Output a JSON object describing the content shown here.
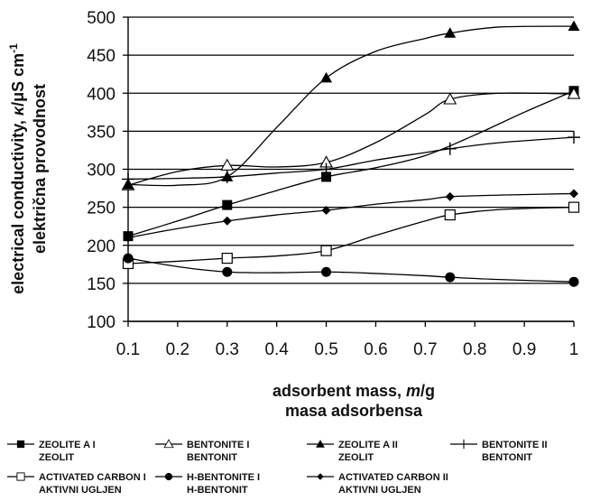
{
  "chart_data": {
    "type": "line",
    "title": "",
    "xlabel": [
      "adsorbent mass, m/g",
      "masa adsorbensa"
    ],
    "xlabel_parts": [
      {
        "pre": "adsorbent mass, ",
        "sym": "m",
        "post": "/g"
      },
      {
        "pre": "masa adsorbensa",
        "sym": "",
        "post": ""
      }
    ],
    "ylabel_parts": [
      {
        "pre": "electrical conductivity, ",
        "sym": "κ",
        "post": "/μS cm",
        "sup": "-1"
      },
      {
        "pre": "električna provodnost",
        "sym": "",
        "post": "",
        "sup": ""
      }
    ],
    "xlim": [
      0.1,
      1
    ],
    "ylim": [
      100,
      500
    ],
    "xticks": [
      "0.1",
      "0.2",
      "0.3",
      "0.4",
      "0.5",
      "0.6",
      "0.7",
      "0.8",
      "0.9",
      "1"
    ],
    "yticks": [
      "100",
      "150",
      "200",
      "250",
      "300",
      "350",
      "400",
      "450",
      "500"
    ],
    "grid": "horizontal",
    "legend_position": "bottom",
    "series": [
      {
        "name": [
          "ZEOLITE A I",
          "ZEOLIT"
        ],
        "marker": "square-filled",
        "x": [
          0.1,
          0.3,
          0.5,
          1.0
        ],
        "y": [
          212,
          253,
          290,
          403
        ],
        "curve": [
          [
            0.1,
            212
          ],
          [
            0.2,
            232
          ],
          [
            0.3,
            253
          ],
          [
            0.4,
            272
          ],
          [
            0.5,
            290
          ],
          [
            0.6,
            302
          ],
          [
            0.7,
            318
          ],
          [
            0.8,
            345
          ],
          [
            0.9,
            375
          ],
          [
            1.0,
            403
          ]
        ]
      },
      {
        "name": [
          "BENTONITE I",
          "BENTONIT"
        ],
        "marker": "triangle-open",
        "x": [
          0.1,
          0.3,
          0.5,
          0.75,
          1.0
        ],
        "y": [
          279,
          305,
          309,
          392,
          399
        ],
        "curve": [
          [
            0.1,
            279
          ],
          [
            0.2,
            297
          ],
          [
            0.3,
            305
          ],
          [
            0.4,
            303
          ],
          [
            0.5,
            309
          ],
          [
            0.6,
            335
          ],
          [
            0.7,
            372
          ],
          [
            0.75,
            392
          ],
          [
            0.85,
            400
          ],
          [
            1.0,
            399
          ]
        ]
      },
      {
        "name": [
          "ZEOLITE A II",
          "ZEOLIT"
        ],
        "marker": "triangle-filled",
        "x": [
          0.1,
          0.3,
          0.5,
          0.75,
          1.0
        ],
        "y": [
          280,
          290,
          420,
          479,
          488
        ],
        "curve": [
          [
            0.1,
            280
          ],
          [
            0.2,
            279
          ],
          [
            0.3,
            290
          ],
          [
            0.4,
            355
          ],
          [
            0.5,
            420
          ],
          [
            0.6,
            455
          ],
          [
            0.7,
            472
          ],
          [
            0.75,
            479
          ],
          [
            0.85,
            487
          ],
          [
            1.0,
            488
          ]
        ]
      },
      {
        "name": [
          "BENTONITE II",
          "BENTONIT"
        ],
        "marker": "plus",
        "x": [
          0.1,
          0.3,
          0.5,
          0.75,
          1.0
        ],
        "y": [
          287,
          290,
          300,
          327,
          342
        ],
        "curve": [
          [
            0.1,
            287
          ],
          [
            0.2,
            288
          ],
          [
            0.3,
            290
          ],
          [
            0.4,
            295
          ],
          [
            0.5,
            300
          ],
          [
            0.6,
            312
          ],
          [
            0.7,
            322
          ],
          [
            0.75,
            327
          ],
          [
            0.85,
            335
          ],
          [
            1.0,
            342
          ]
        ]
      },
      {
        "name": [
          "ACTIVATED CARBON I",
          "AKTIVNI UGLJEN"
        ],
        "marker": "square-open",
        "x": [
          0.1,
          0.3,
          0.5,
          0.75,
          1.0
        ],
        "y": [
          176,
          183,
          193,
          240,
          250
        ],
        "curve": [
          [
            0.1,
            176
          ],
          [
            0.2,
            179
          ],
          [
            0.3,
            183
          ],
          [
            0.4,
            186
          ],
          [
            0.5,
            193
          ],
          [
            0.6,
            213
          ],
          [
            0.7,
            232
          ],
          [
            0.75,
            240
          ],
          [
            0.85,
            247
          ],
          [
            1.0,
            250
          ]
        ]
      },
      {
        "name": [
          "H-BENTONITE I",
          "H-BENTONIT"
        ],
        "marker": "circle-filled",
        "x": [
          0.1,
          0.3,
          0.5,
          0.75,
          1.0
        ],
        "y": [
          183,
          165,
          165,
          158,
          152
        ],
        "curve": [
          [
            0.1,
            183
          ],
          [
            0.2,
            172
          ],
          [
            0.3,
            165
          ],
          [
            0.4,
            164
          ],
          [
            0.5,
            165
          ],
          [
            0.6,
            163
          ],
          [
            0.7,
            160
          ],
          [
            0.75,
            158
          ],
          [
            0.85,
            155
          ],
          [
            1.0,
            152
          ]
        ]
      },
      {
        "name": [
          "ACTIVATED CARBON II",
          "AKTIVNI UGLJEN"
        ],
        "marker": "diamond-filled",
        "x": [
          0.1,
          0.3,
          0.5,
          0.75,
          1.0
        ],
        "y": [
          210,
          232,
          246,
          264,
          268
        ],
        "curve": [
          [
            0.1,
            210
          ],
          [
            0.2,
            222
          ],
          [
            0.3,
            232
          ],
          [
            0.4,
            240
          ],
          [
            0.5,
            246
          ],
          [
            0.6,
            254
          ],
          [
            0.7,
            260
          ],
          [
            0.75,
            264
          ],
          [
            0.85,
            266
          ],
          [
            1.0,
            268
          ]
        ]
      }
    ]
  }
}
